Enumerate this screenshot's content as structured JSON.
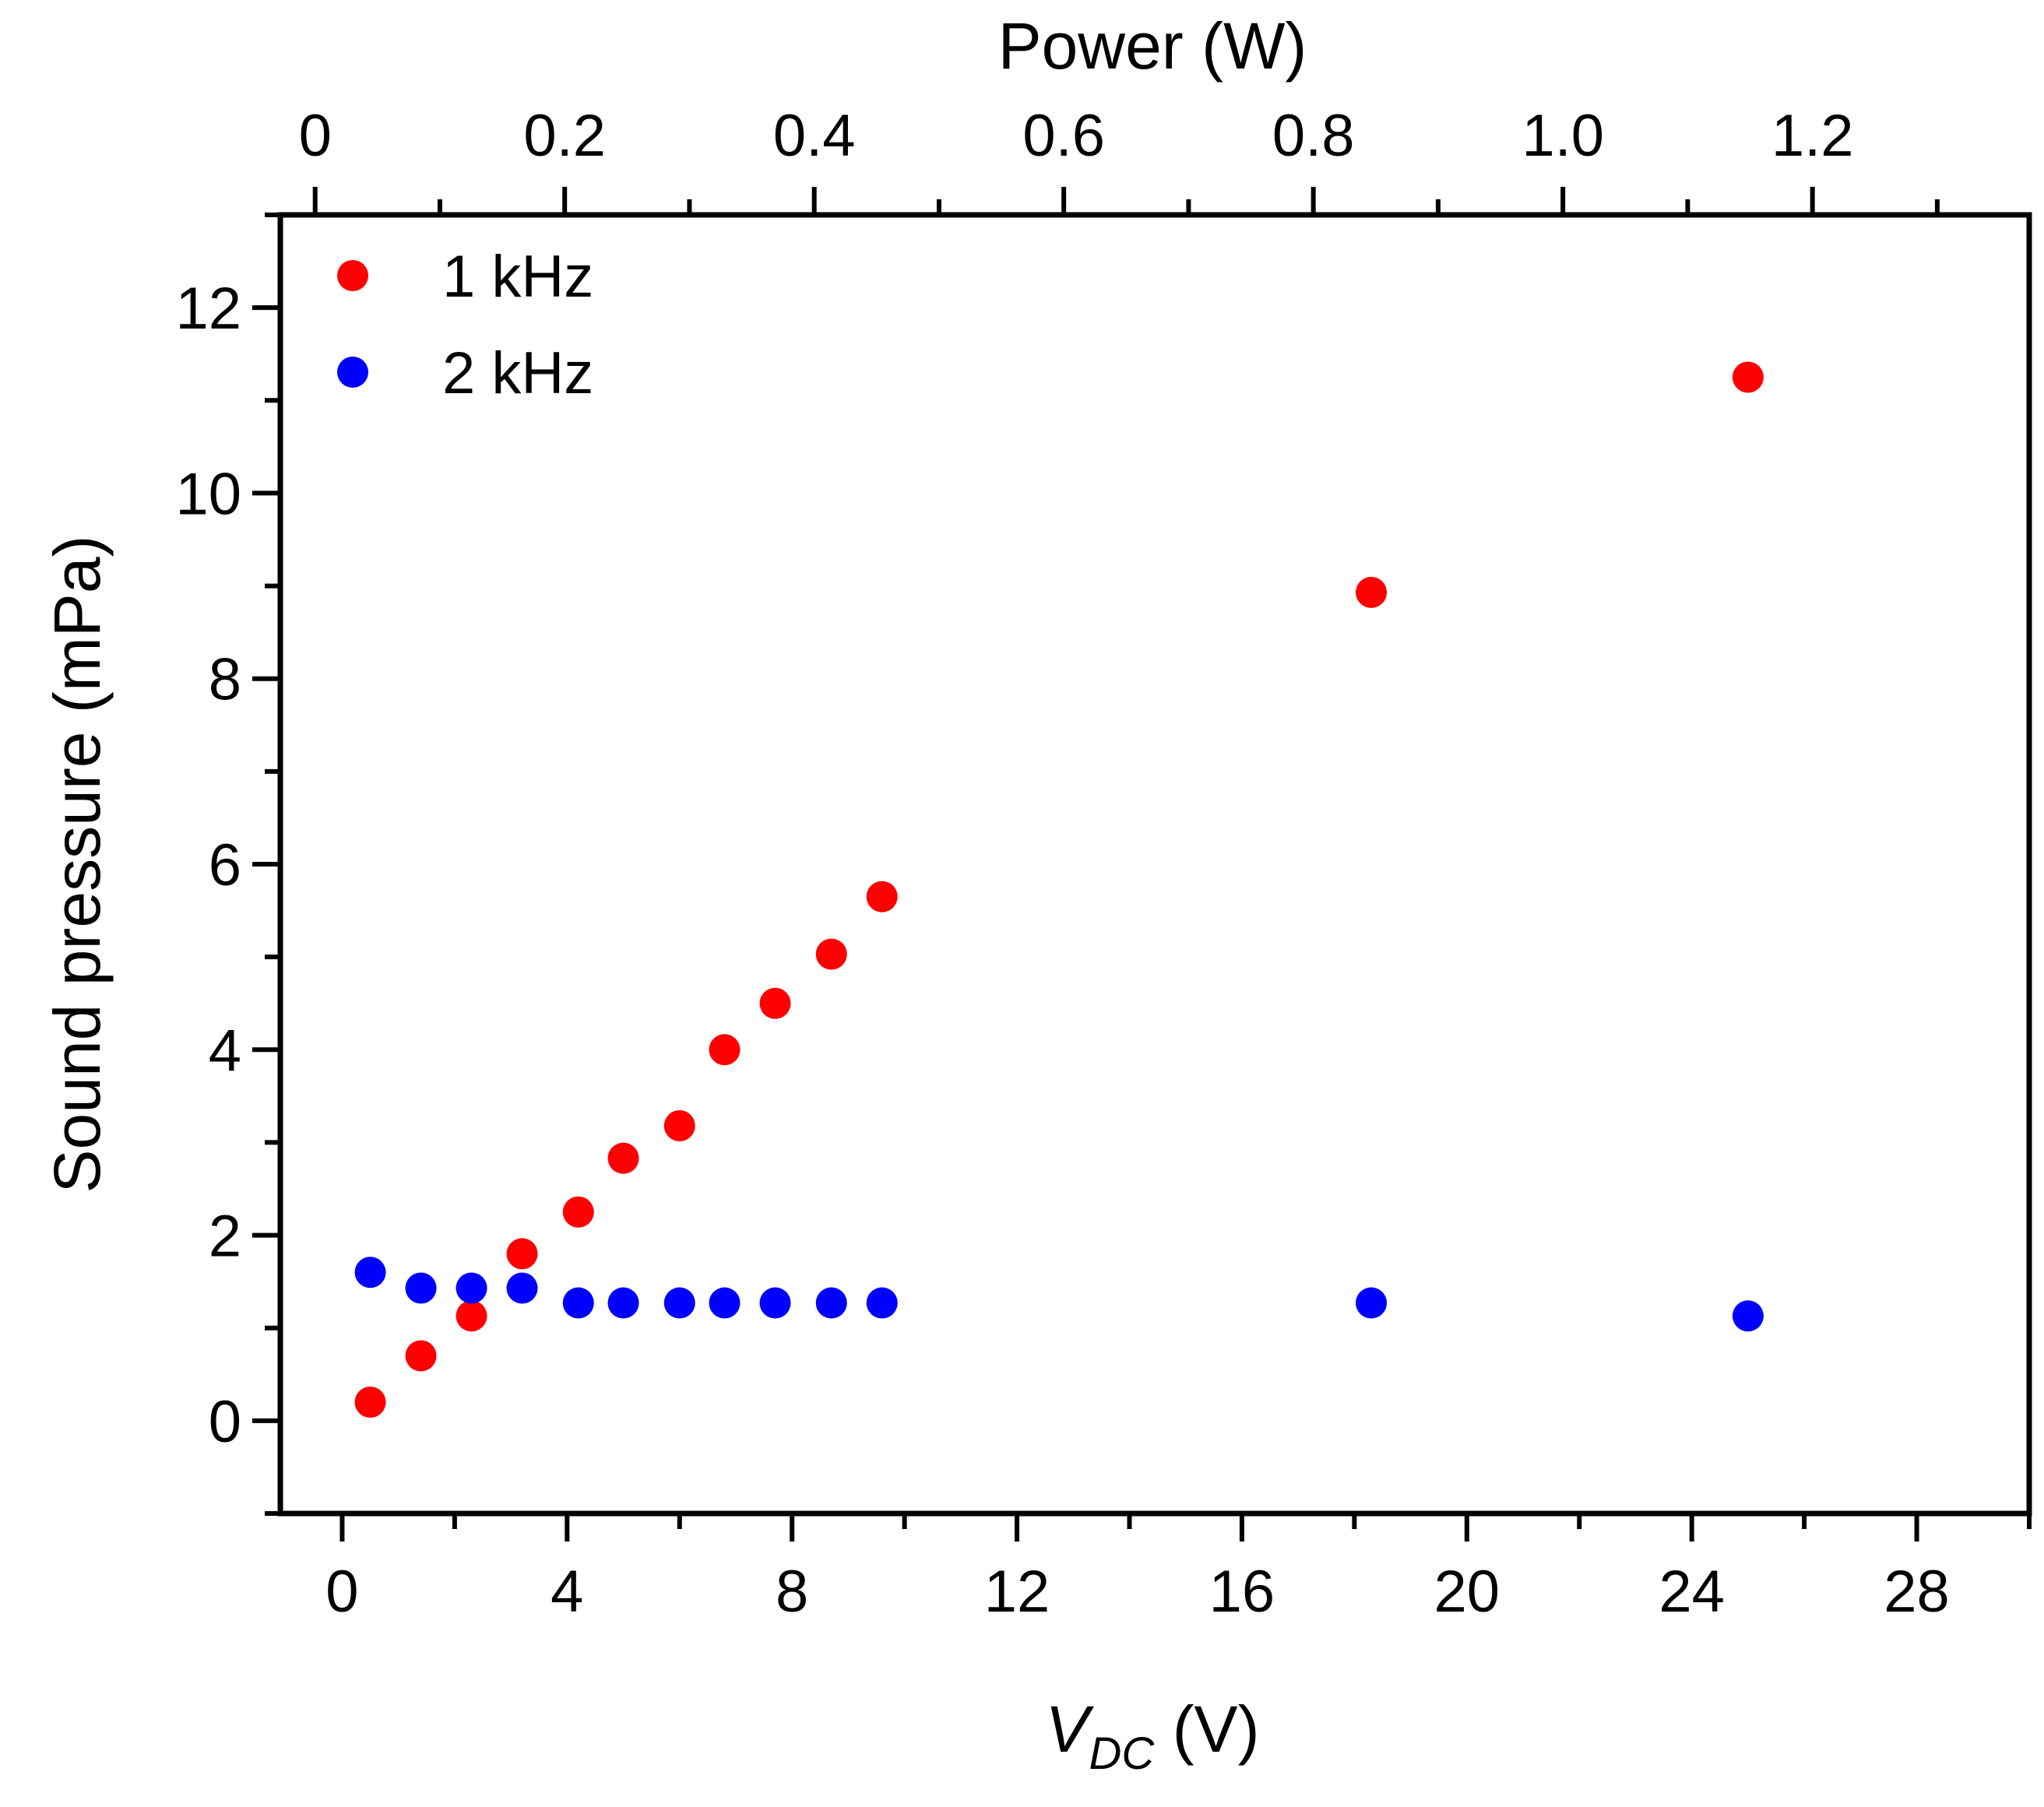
{
  "chart_data": {
    "type": "scatter",
    "title": "",
    "xlabel": {
      "main": "V",
      "subscript": "DC",
      "unit": " (V)"
    },
    "ylabel": "Sound pressure (mPa)",
    "x2label": "Power (W)",
    "xlim": [
      -1.1,
      30
    ],
    "ylim": [
      -1,
      13
    ],
    "x2lim": [
      -0.0279,
      1.3737
    ],
    "x_ticks": [
      0,
      4,
      8,
      12,
      16,
      20,
      24,
      28
    ],
    "x_minor_step": 2,
    "y_ticks": [
      0,
      2,
      4,
      6,
      8,
      10,
      12
    ],
    "y_minor_step": 1,
    "x2_ticks": [
      {
        "value": 0,
        "label": "0"
      },
      {
        "value": 0.2,
        "label": "0.2"
      },
      {
        "value": 0.4,
        "label": "0.4"
      },
      {
        "value": 0.6,
        "label": "0.6"
      },
      {
        "value": 0.8,
        "label": "0.8"
      },
      {
        "value": 1.0,
        "label": "1.0"
      },
      {
        "value": 1.2,
        "label": "1.2"
      }
    ],
    "x2_minor_step": 0.1,
    "legend_position": "top-left",
    "series": [
      {
        "name": "1 kHz",
        "color": "#ff0000",
        "x": [
          0.5,
          1.4,
          2.3,
          3.2,
          4.2,
          5.0,
          6.0,
          6.8,
          7.7,
          8.7,
          9.6,
          18.3,
          25.0
        ],
        "y": [
          0.2,
          0.7,
          1.13,
          1.8,
          2.25,
          2.83,
          3.18,
          4.0,
          4.5,
          5.03,
          5.65,
          8.93,
          11.25
        ]
      },
      {
        "name": "2 kHz",
        "color": "#0000ff",
        "x": [
          0.5,
          1.4,
          2.3,
          3.2,
          4.2,
          5.0,
          6.0,
          6.8,
          7.7,
          8.7,
          9.6,
          18.3,
          25.0
        ],
        "y": [
          1.6,
          1.43,
          1.43,
          1.43,
          1.27,
          1.27,
          1.27,
          1.27,
          1.27,
          1.27,
          1.27,
          1.27,
          1.13
        ]
      }
    ]
  }
}
